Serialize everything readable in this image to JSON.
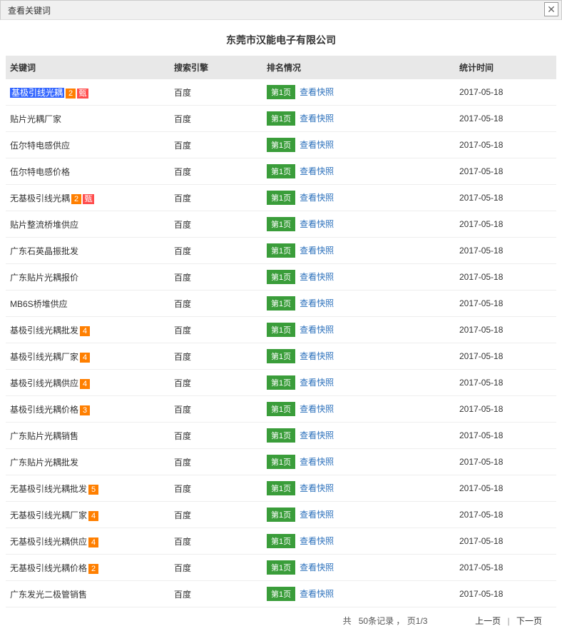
{
  "dialog": {
    "title": "查看关键词",
    "close": "✕"
  },
  "company": "东莞市汉能电子有限公司",
  "headers": {
    "keyword": "关键词",
    "engine": "搜索引擎",
    "rank": "排名情况",
    "time": "统计时间"
  },
  "rank_label": "第1页",
  "snapshot_label": "查看快照",
  "engine_label": "百度",
  "rows": [
    {
      "keyword": "基极引线光耦",
      "highlight": true,
      "badge_num": "2",
      "badge_zhen": "甄",
      "date": "2017-05-18"
    },
    {
      "keyword": "贴片光耦厂家",
      "highlight": false,
      "badge_num": "",
      "badge_zhen": "",
      "date": "2017-05-18"
    },
    {
      "keyword": "伍尔特电感供应",
      "highlight": false,
      "badge_num": "",
      "badge_zhen": "",
      "date": "2017-05-18"
    },
    {
      "keyword": "伍尔特电感价格",
      "highlight": false,
      "badge_num": "",
      "badge_zhen": "",
      "date": "2017-05-18"
    },
    {
      "keyword": "无基极引线光耦",
      "highlight": false,
      "badge_num": "2",
      "badge_zhen": "甄",
      "date": "2017-05-18"
    },
    {
      "keyword": "贴片整流桥堆供应",
      "highlight": false,
      "badge_num": "",
      "badge_zhen": "",
      "date": "2017-05-18"
    },
    {
      "keyword": "广东石英晶振批发",
      "highlight": false,
      "badge_num": "",
      "badge_zhen": "",
      "date": "2017-05-18"
    },
    {
      "keyword": "广东贴片光耦报价",
      "highlight": false,
      "badge_num": "",
      "badge_zhen": "",
      "date": "2017-05-18"
    },
    {
      "keyword": "MB6S桥堆供应",
      "highlight": false,
      "badge_num": "",
      "badge_zhen": "",
      "date": "2017-05-18"
    },
    {
      "keyword": "基极引线光耦批发",
      "highlight": false,
      "badge_num": "4",
      "badge_zhen": "",
      "date": "2017-05-18"
    },
    {
      "keyword": "基极引线光耦厂家",
      "highlight": false,
      "badge_num": "4",
      "badge_zhen": "",
      "date": "2017-05-18"
    },
    {
      "keyword": "基极引线光耦供应",
      "highlight": false,
      "badge_num": "4",
      "badge_zhen": "",
      "date": "2017-05-18"
    },
    {
      "keyword": "基极引线光耦价格",
      "highlight": false,
      "badge_num": "3",
      "badge_zhen": "",
      "date": "2017-05-18"
    },
    {
      "keyword": "广东贴片光耦销售",
      "highlight": false,
      "badge_num": "",
      "badge_zhen": "",
      "date": "2017-05-18"
    },
    {
      "keyword": "广东贴片光耦批发",
      "highlight": false,
      "badge_num": "",
      "badge_zhen": "",
      "date": "2017-05-18"
    },
    {
      "keyword": "无基极引线光耦批发",
      "highlight": false,
      "badge_num": "5",
      "badge_zhen": "",
      "date": "2017-05-18"
    },
    {
      "keyword": "无基极引线光耦厂家",
      "highlight": false,
      "badge_num": "4",
      "badge_zhen": "",
      "date": "2017-05-18"
    },
    {
      "keyword": "无基极引线光耦供应",
      "highlight": false,
      "badge_num": "4",
      "badge_zhen": "",
      "date": "2017-05-18"
    },
    {
      "keyword": "无基极引线光耦价格",
      "highlight": false,
      "badge_num": "2",
      "badge_zhen": "",
      "date": "2017-05-18"
    },
    {
      "keyword": "广东发光二极管销售",
      "highlight": false,
      "badge_num": "",
      "badge_zhen": "",
      "date": "2017-05-18"
    }
  ],
  "footer": {
    "records_prefix": "共",
    "records_count": "50条记录",
    "records_sep": " ，",
    "page_info": "页1/3",
    "prev": "上一页",
    "next": "下一页"
  },
  "colors": {
    "header_bg": "#e8e8e8",
    "rank_bg": "#3a9d3a",
    "badge_orange": "#ff7f00",
    "badge_red": "#ff4d4d",
    "link": "#2a6fbb",
    "highlight_bg": "#3366ff"
  }
}
